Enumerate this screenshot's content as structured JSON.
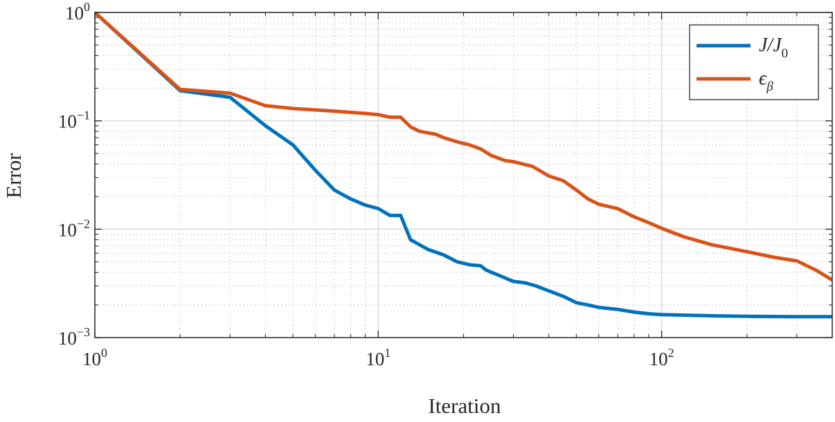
{
  "chart_data": {
    "type": "line",
    "xlabel": "Iteration",
    "ylabel": "Error",
    "xscale": "log",
    "yscale": "log",
    "xlim": [
      1,
      400
    ],
    "ylim": [
      0.001,
      1
    ],
    "grid": true,
    "minor_grid": true,
    "legend_position": "top-right",
    "x_ticks": [
      {
        "base": "10",
        "exp": "0"
      },
      {
        "base": "10",
        "exp": "1"
      },
      {
        "base": "10",
        "exp": "2"
      }
    ],
    "y_ticks": [
      {
        "base": "10",
        "exp": "0"
      },
      {
        "base": "10",
        "exp": "−1"
      },
      {
        "base": "10",
        "exp": "−2"
      },
      {
        "base": "10",
        "exp": "−3"
      }
    ],
    "series": [
      {
        "name": "J/J0",
        "legend": {
          "main": "J/J",
          "sub": "0"
        },
        "color": "#0072BD",
        "x": [
          1,
          2,
          3,
          4,
          5,
          6,
          7,
          8,
          9,
          10,
          11,
          12,
          13,
          15,
          17,
          19,
          21,
          23,
          24,
          27,
          30,
          33,
          36,
          40,
          45,
          50,
          55,
          60,
          70,
          80,
          90,
          100,
          150,
          200,
          300,
          400
        ],
        "y": [
          1.0,
          0.19,
          0.165,
          0.09,
          0.06,
          0.035,
          0.023,
          0.019,
          0.0167,
          0.0155,
          0.0134,
          0.0134,
          0.008,
          0.0065,
          0.0058,
          0.005,
          0.0047,
          0.0046,
          0.0042,
          0.0037,
          0.0033,
          0.0032,
          0.003,
          0.0027,
          0.0024,
          0.0021,
          0.002,
          0.0019,
          0.00182,
          0.00172,
          0.00166,
          0.00163,
          0.00159,
          0.00157,
          0.00156,
          0.00156
        ]
      },
      {
        "name": "εβ",
        "legend": {
          "main": "ϵ",
          "sub": "β"
        },
        "color": "#D95319",
        "x": [
          1,
          2,
          3,
          4,
          5,
          7,
          9,
          10,
          11,
          12,
          13,
          14,
          16,
          17,
          19,
          21,
          23,
          25,
          28,
          30,
          35,
          40,
          45,
          50,
          55,
          60,
          70,
          80,
          90,
          100,
          120,
          150,
          200,
          250,
          300,
          350,
          400
        ],
        "y": [
          1.0,
          0.195,
          0.18,
          0.138,
          0.13,
          0.123,
          0.117,
          0.114,
          0.108,
          0.108,
          0.088,
          0.08,
          0.075,
          0.07,
          0.064,
          0.06,
          0.055,
          0.048,
          0.043,
          0.042,
          0.038,
          0.031,
          0.028,
          0.023,
          0.019,
          0.017,
          0.0155,
          0.013,
          0.0115,
          0.0102,
          0.0085,
          0.0072,
          0.0062,
          0.0055,
          0.0051,
          0.0042,
          0.0034
        ]
      }
    ]
  }
}
